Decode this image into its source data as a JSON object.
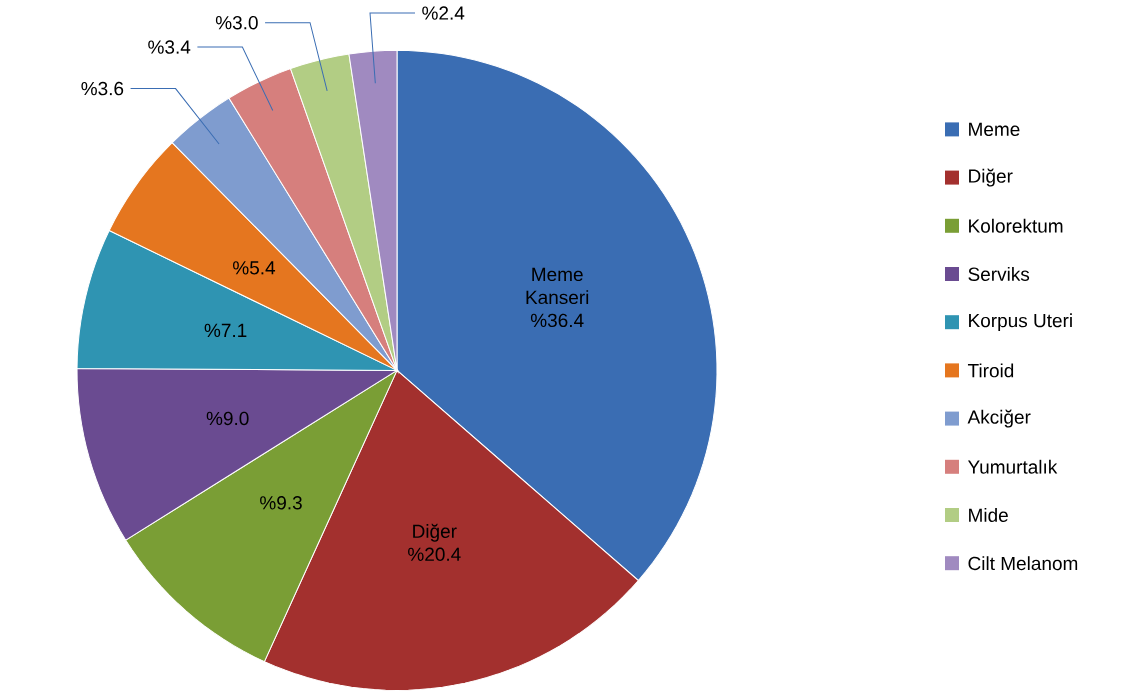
{
  "chart_data": {
    "type": "pie",
    "categories": [
      "Meme",
      "Diğer",
      "Kolorektum",
      "Serviks",
      "Korpus Uteri",
      "Tiroid",
      "Akciğer",
      "Yumurtalık",
      "Mide",
      "Cilt Melanom"
    ],
    "values": [
      36.4,
      20.4,
      9.3,
      9.0,
      7.1,
      5.4,
      3.6,
      3.4,
      3.0,
      2.4
    ],
    "colors": [
      "#3a6db3",
      "#a3302e",
      "#7a9e35",
      "#6a4b91",
      "#2f94b2",
      "#e5761f",
      "#7f9ccf",
      "#d67f7d",
      "#b2cd84",
      "#a08ac0"
    ],
    "value_labels": [
      "Meme Kanseri %36.4",
      "Diğer %20.4",
      "%9.3",
      "%9.0",
      "%7.1",
      "%5.4",
      "%3.6",
      "%3.4",
      "%3.0",
      "%2.4"
    ],
    "legend": "right"
  }
}
